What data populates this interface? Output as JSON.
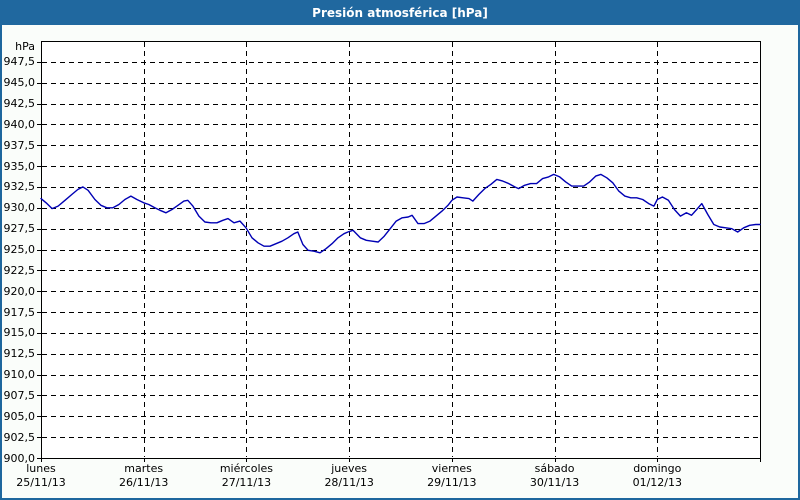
{
  "window": {
    "title": "Presión atmosférica [hPa]"
  },
  "colors": {
    "titlebar_bg": "#20689F",
    "window_border": "#1E679E",
    "window_bg": "#FAFDFA",
    "plot_bg": "#FFFFFF",
    "grid": "#000000",
    "line": "#0000B4",
    "title_text": "#FFFFFF"
  },
  "chart_data": {
    "type": "line",
    "title": "Presión atmosférica [hPa]",
    "grid": "dashed",
    "legend": "none",
    "y_axis": {
      "unit_label": "hPa",
      "min": 900,
      "max": 950,
      "tick_step": 2.5,
      "tick_labels": [
        "947,5",
        "945,0",
        "942,5",
        "940,0",
        "937,5",
        "935,0",
        "932,5",
        "930,0",
        "927,5",
        "925,0",
        "922,5",
        "920,0",
        "917,5",
        "915,0",
        "912,5",
        "910,0",
        "907,5",
        "905,0",
        "902,5",
        "900,0"
      ],
      "tick_values": [
        947.5,
        945.0,
        942.5,
        940.0,
        937.5,
        935.0,
        932.5,
        930.0,
        927.5,
        925.0,
        922.5,
        920.0,
        917.5,
        915.0,
        912.5,
        910.0,
        907.5,
        905.0,
        902.5,
        900.0
      ]
    },
    "x_axis": {
      "hours_total": 168,
      "hours_per_day": 24,
      "days": [
        {
          "name": "lunes",
          "date": "25/11/13"
        },
        {
          "name": "martes",
          "date": "26/11/13"
        },
        {
          "name": "miércoles",
          "date": "27/11/13"
        },
        {
          "name": "jueves",
          "date": "28/11/13"
        },
        {
          "name": "viernes",
          "date": "29/11/13"
        },
        {
          "name": "sábado",
          "date": "30/11/13"
        },
        {
          "name": "domingo",
          "date": "01/12/13"
        }
      ]
    },
    "series": [
      {
        "name": "Presión atmosférica",
        "color": "#0000B4",
        "points": [
          [
            0,
            931.1
          ],
          [
            1.2,
            930.6
          ],
          [
            2.6,
            929.9
          ],
          [
            4,
            930.2
          ],
          [
            5.6,
            930.9
          ],
          [
            7.2,
            931.6
          ],
          [
            8.6,
            932.2
          ],
          [
            9.8,
            932.5
          ],
          [
            11,
            932.1
          ],
          [
            12.6,
            931.0
          ],
          [
            14,
            930.3
          ],
          [
            15.4,
            930.0
          ],
          [
            16.8,
            930.0
          ],
          [
            18.2,
            930.4
          ],
          [
            19.6,
            931.0
          ],
          [
            21,
            931.4
          ],
          [
            22.4,
            931.0
          ],
          [
            24,
            930.6
          ],
          [
            25.2,
            930.4
          ],
          [
            26.6,
            930.0
          ],
          [
            27.8,
            929.7
          ],
          [
            29.2,
            929.4
          ],
          [
            30.6,
            929.8
          ],
          [
            32,
            930.3
          ],
          [
            33.4,
            930.8
          ],
          [
            34.3,
            930.9
          ],
          [
            35.5,
            930.2
          ],
          [
            36.9,
            929.0
          ],
          [
            38.3,
            928.3
          ],
          [
            39.7,
            928.2
          ],
          [
            41.1,
            928.2
          ],
          [
            42.5,
            928.5
          ],
          [
            43.7,
            928.7
          ],
          [
            45.1,
            928.2
          ],
          [
            46.5,
            928.4
          ],
          [
            47.9,
            927.6
          ],
          [
            49.3,
            926.4
          ],
          [
            50.7,
            925.8
          ],
          [
            52.1,
            925.4
          ],
          [
            53.5,
            925.4
          ],
          [
            54.9,
            925.7
          ],
          [
            56.3,
            926.0
          ],
          [
            57.7,
            926.4
          ],
          [
            59.1,
            926.9
          ],
          [
            60,
            927.1
          ],
          [
            61.2,
            925.6
          ],
          [
            62.4,
            924.9
          ],
          [
            63.8,
            924.8
          ],
          [
            65.2,
            924.6
          ],
          [
            66.6,
            925.1
          ],
          [
            68,
            925.7
          ],
          [
            69.4,
            926.4
          ],
          [
            70.8,
            926.9
          ],
          [
            71.7,
            927.1
          ],
          [
            72.9,
            927.3
          ],
          [
            74.6,
            926.4
          ],
          [
            76,
            926.1
          ],
          [
            77.4,
            926.0
          ],
          [
            78.8,
            925.9
          ],
          [
            80.2,
            926.6
          ],
          [
            81.6,
            927.5
          ],
          [
            83,
            928.4
          ],
          [
            84.4,
            928.8
          ],
          [
            85.8,
            928.9
          ],
          [
            86.7,
            929.1
          ],
          [
            88.1,
            928.1
          ],
          [
            89.5,
            928.1
          ],
          [
            90.9,
            928.4
          ],
          [
            92.3,
            929.0
          ],
          [
            93.7,
            929.6
          ],
          [
            95.1,
            930.3
          ],
          [
            96,
            930.9
          ],
          [
            97.2,
            931.3
          ],
          [
            98.6,
            931.2
          ],
          [
            100,
            931.1
          ],
          [
            100.9,
            930.8
          ],
          [
            102.3,
            931.6
          ],
          [
            103.7,
            932.3
          ],
          [
            105.1,
            932.8
          ],
          [
            106.5,
            933.4
          ],
          [
            107.9,
            933.2
          ],
          [
            109.3,
            932.9
          ],
          [
            110.7,
            932.5
          ],
          [
            111.6,
            932.3
          ],
          [
            113,
            932.7
          ],
          [
            114.4,
            932.9
          ],
          [
            115.8,
            932.9
          ],
          [
            117.2,
            933.5
          ],
          [
            118.6,
            933.7
          ],
          [
            119.8,
            934.0
          ],
          [
            121.2,
            933.7
          ],
          [
            122.6,
            933.1
          ],
          [
            124,
            932.6
          ],
          [
            125.4,
            932.6
          ],
          [
            126.8,
            932.6
          ],
          [
            128.2,
            933.1
          ],
          [
            129.6,
            933.8
          ],
          [
            130.8,
            934.0
          ],
          [
            132.2,
            933.6
          ],
          [
            133.6,
            933.0
          ],
          [
            135,
            932.0
          ],
          [
            136.4,
            931.4
          ],
          [
            137.8,
            931.2
          ],
          [
            139.2,
            931.2
          ],
          [
            140.6,
            931.0
          ],
          [
            142,
            930.5
          ],
          [
            143.2,
            930.2
          ],
          [
            144,
            931.0
          ],
          [
            145.2,
            931.3
          ],
          [
            146.6,
            930.9
          ],
          [
            148,
            929.8
          ],
          [
            149.4,
            929.0
          ],
          [
            150.8,
            929.4
          ],
          [
            152,
            929.1
          ],
          [
            153.2,
            929.8
          ],
          [
            154.4,
            930.5
          ],
          [
            155.8,
            929.2
          ],
          [
            157.2,
            928.0
          ],
          [
            158.6,
            927.7
          ],
          [
            160,
            927.6
          ],
          [
            161.4,
            927.5
          ],
          [
            162.8,
            927.1
          ],
          [
            164.2,
            927.6
          ],
          [
            165.6,
            927.9
          ],
          [
            167,
            928.0
          ],
          [
            168,
            928.0
          ]
        ]
      }
    ]
  }
}
